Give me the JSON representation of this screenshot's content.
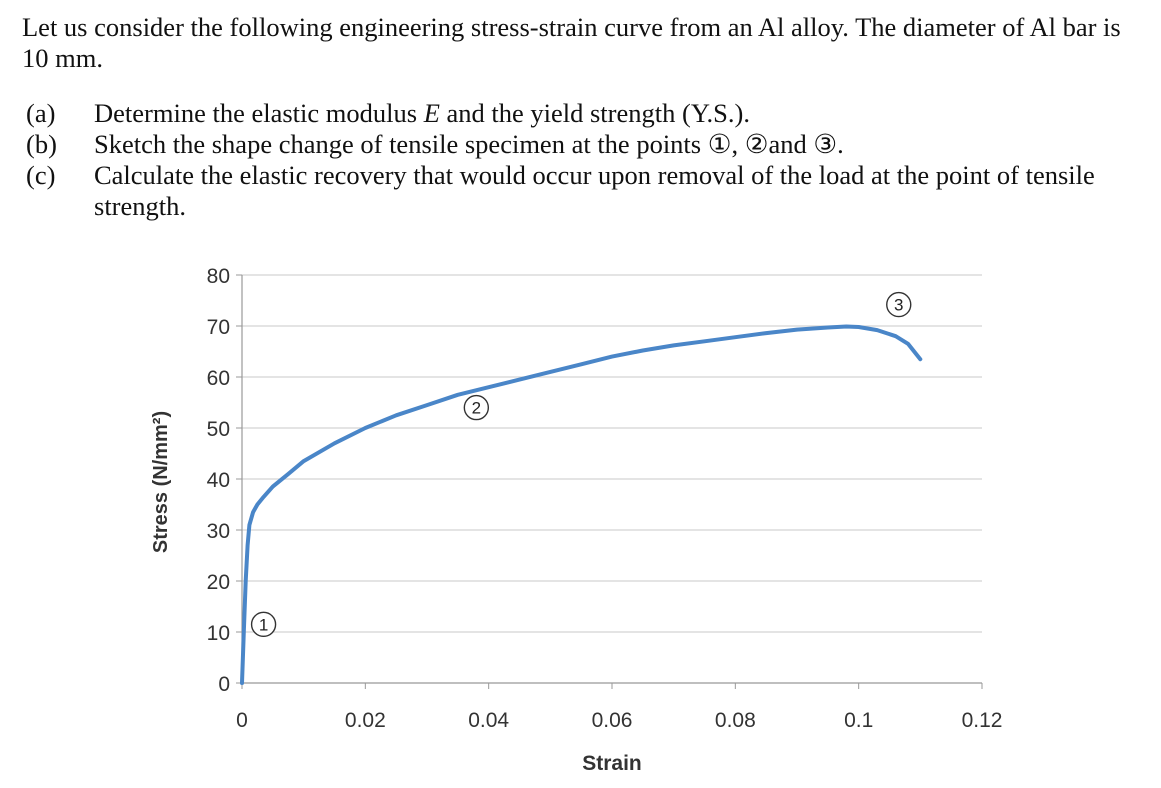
{
  "problem": {
    "intro": "Let us consider the following engineering stress-strain curve from an Al alloy. The diameter of Al bar is 10 mm.",
    "items": [
      {
        "label": "(a)",
        "pre": "Determine the elastic modulus ",
        "em": "E",
        "post": " and the yield strength (Y.S.)."
      },
      {
        "label": "(b)",
        "pre": "Sketch the shape change of tensile specimen at the points ①, ②and ③.",
        "em": "",
        "post": ""
      },
      {
        "label": "(c)",
        "pre": "Calculate the elastic recovery that would occur upon removal of the load at the point of tensile strength.",
        "em": "",
        "post": ""
      }
    ]
  },
  "chart_data": {
    "type": "line",
    "xlabel": "Strain",
    "ylabel": "Stress (N/mm²)",
    "xlim": [
      0,
      0.12
    ],
    "ylim": [
      0,
      80
    ],
    "xticks": [
      "0",
      "0.02",
      "0.04",
      "0.06",
      "0.08",
      "0.1",
      "0.12"
    ],
    "yticks": [
      "0",
      "10",
      "20",
      "30",
      "40",
      "50",
      "60",
      "70",
      "80"
    ],
    "grid": "horizontal",
    "line_color": "#4a86c8",
    "series": [
      {
        "x": [
          0,
          0.0003,
          0.0006,
          0.0009,
          0.0012,
          0.0018,
          0.0025,
          0.0035,
          0.005,
          0.0075,
          0.01,
          0.015,
          0.02,
          0.025,
          0.03,
          0.035,
          0.04,
          0.045,
          0.05,
          0.055,
          0.06,
          0.065,
          0.07,
          0.075,
          0.08,
          0.085,
          0.09,
          0.095,
          0.098,
          0.1,
          0.103,
          0.106,
          0.108,
          0.11
        ],
        "y": [
          0,
          10,
          20,
          27,
          31,
          33.5,
          35,
          36.5,
          38.5,
          41,
          43.5,
          47,
          50,
          52.5,
          54.5,
          56.5,
          58,
          59.5,
          61,
          62.5,
          64,
          65.2,
          66.2,
          67,
          67.8,
          68.6,
          69.3,
          69.7,
          69.9,
          69.8,
          69.2,
          68,
          66.5,
          63.5
        ]
      }
    ],
    "annotations": [
      {
        "text": "1",
        "x": 0.0035,
        "y": 11.5
      },
      {
        "text": "2",
        "x": 0.038,
        "y": 54
      },
      {
        "text": "3",
        "x": 0.1065,
        "y": 74.2
      }
    ]
  }
}
